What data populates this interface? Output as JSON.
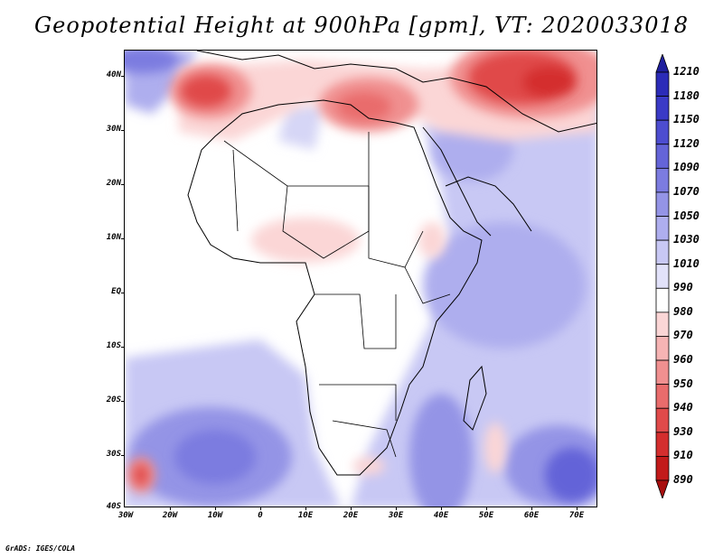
{
  "title": "Geopotential Height at 900hPa [gpm], VT: 2020033018",
  "credit": "GrADS: IGES/COLA",
  "lat_labels": [
    "40N",
    "30N",
    "20N",
    "10N",
    "EQ",
    "10S",
    "20S",
    "30S",
    "40S"
  ],
  "lon_labels": [
    "30W",
    "20W",
    "10W",
    "0",
    "10E",
    "20E",
    "30E",
    "40E",
    "50E",
    "60E",
    "70E"
  ],
  "colorbar": {
    "levels": [
      "1210",
      "1180",
      "1150",
      "1120",
      "1090",
      "1070",
      "1050",
      "1030",
      "1010",
      "990",
      "980",
      "970",
      "960",
      "950",
      "940",
      "930",
      "910",
      "890"
    ],
    "colors": [
      "#1f1f9e",
      "#2b2bb8",
      "#3a3ac6",
      "#4d4dd0",
      "#6464d8",
      "#7c7ce0",
      "#9494e6",
      "#aeaeee",
      "#c8c8f4",
      "#e2e2fa",
      "#ffffff",
      "#fbd6d6",
      "#f6b4b4",
      "#f09090",
      "#e96c6c",
      "#e04a4a",
      "#d42e2e",
      "#c21a1a",
      "#a80e0e"
    ]
  }
}
